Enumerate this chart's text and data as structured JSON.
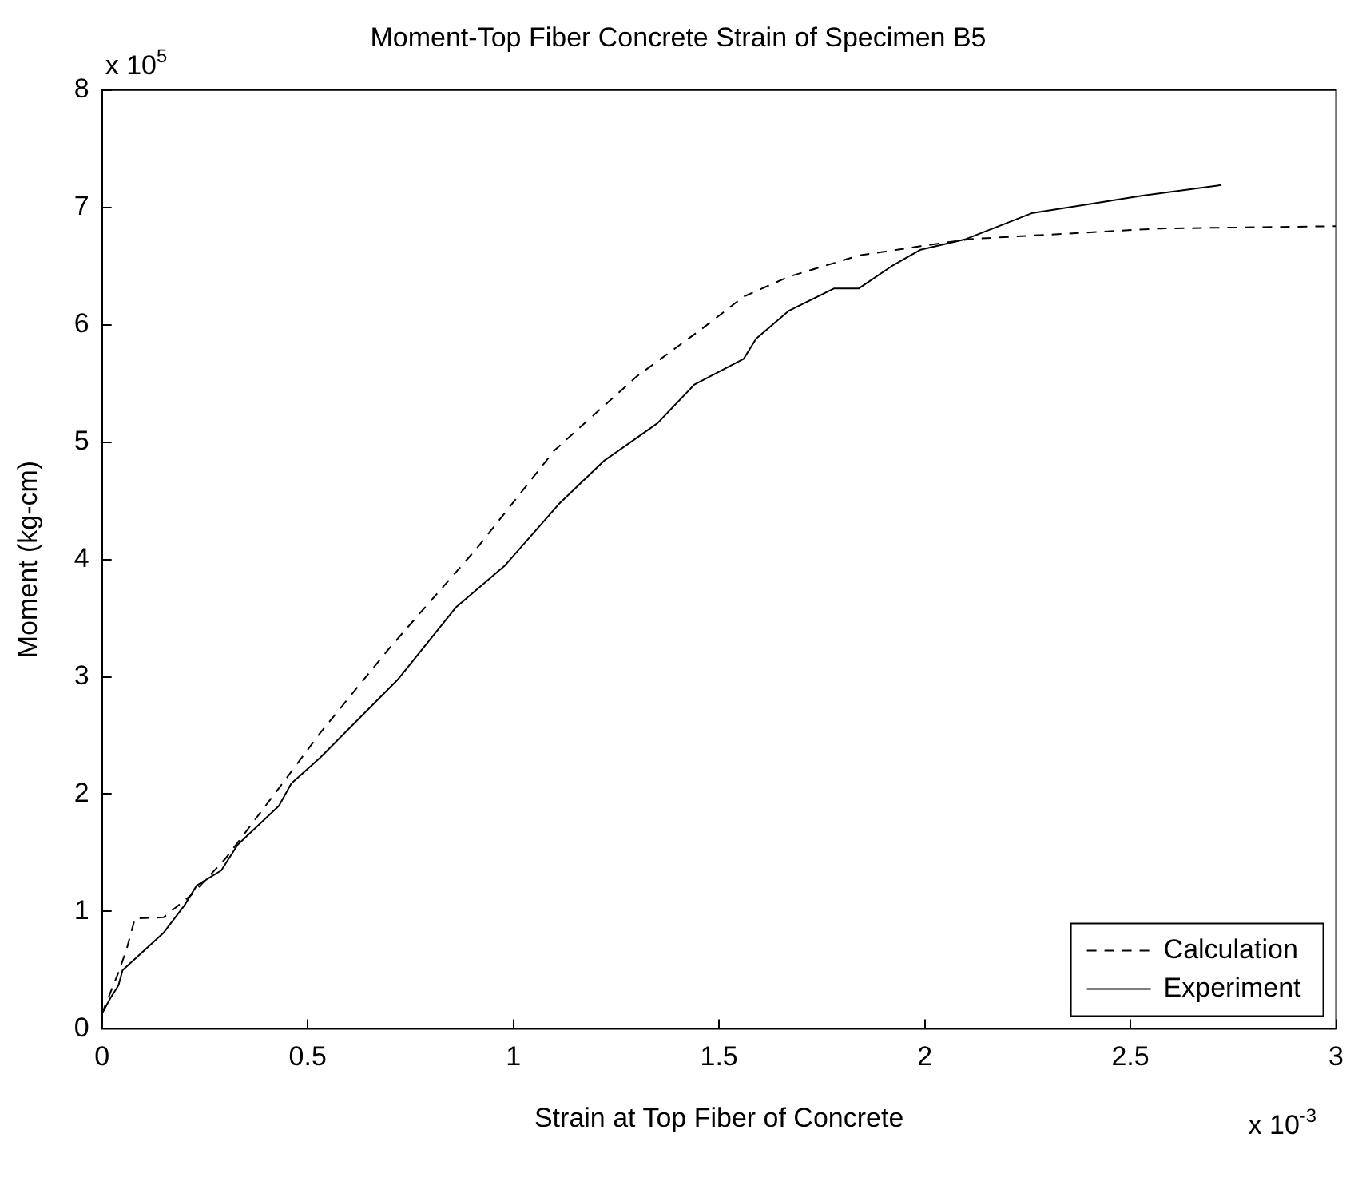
{
  "chart_data": {
    "type": "line",
    "title": "Moment-Top Fiber Concrete Strain of Specimen B5",
    "xlabel": "Strain at Top Fiber of Concrete",
    "ylabel": "Moment (kg-cm)",
    "annotations": [
      "x 10$^{5}$",
      "x 10$^{-3}$"
    ],
    "xlim": [
      0,
      3
    ],
    "xticks": [
      0,
      0.5,
      1,
      1.5,
      2,
      2.5,
      3
    ],
    "ylim": [
      0,
      8
    ],
    "yticks": [
      0,
      1,
      2,
      3,
      4,
      5,
      6,
      7,
      8
    ],
    "grid": false,
    "legend": "bottom right",
    "marker": "none",
    "series": [
      {
        "name": "Calculation",
        "color": "#000000",
        "line_style": "dashed",
        "x": [
          0,
          0.04,
          0.06,
          0.08,
          0.15,
          0.22,
          0.3,
          0.43,
          0.53,
          0.7,
          0.91,
          1.1,
          1.3,
          1.46,
          1.56,
          1.67,
          1.84,
          1.99,
          2.11,
          2.26,
          2.57,
          3.0
        ],
        "values": [
          0.13,
          0.48,
          0.68,
          0.94,
          0.95,
          1.15,
          1.45,
          2.05,
          2.52,
          3.25,
          4.09,
          4.93,
          5.56,
          5.97,
          6.24,
          6.41,
          6.59,
          6.67,
          6.73,
          6.76,
          6.82,
          6.84
        ]
      },
      {
        "name": "Experiment",
        "color": "#000000",
        "line_style": "solid",
        "x": [
          0,
          0.02,
          0.04,
          0.05,
          0.15,
          0.2,
          0.23,
          0.29,
          0.33,
          0.43,
          0.46,
          0.53,
          0.72,
          0.86,
          0.98,
          1.07,
          1.11,
          1.22,
          1.35,
          1.44,
          1.56,
          1.59,
          1.67,
          1.78,
          1.84,
          1.92,
          1.99,
          2.1,
          2.26,
          2.53,
          2.72
        ],
        "values": [
          0.13,
          0.26,
          0.37,
          0.5,
          0.82,
          1.05,
          1.22,
          1.35,
          1.57,
          1.9,
          2.09,
          2.31,
          2.98,
          3.59,
          3.95,
          4.31,
          4.47,
          4.84,
          5.16,
          5.49,
          5.71,
          5.88,
          6.12,
          6.31,
          6.31,
          6.5,
          6.64,
          6.73,
          6.95,
          7.1,
          7.19
        ]
      }
    ]
  }
}
